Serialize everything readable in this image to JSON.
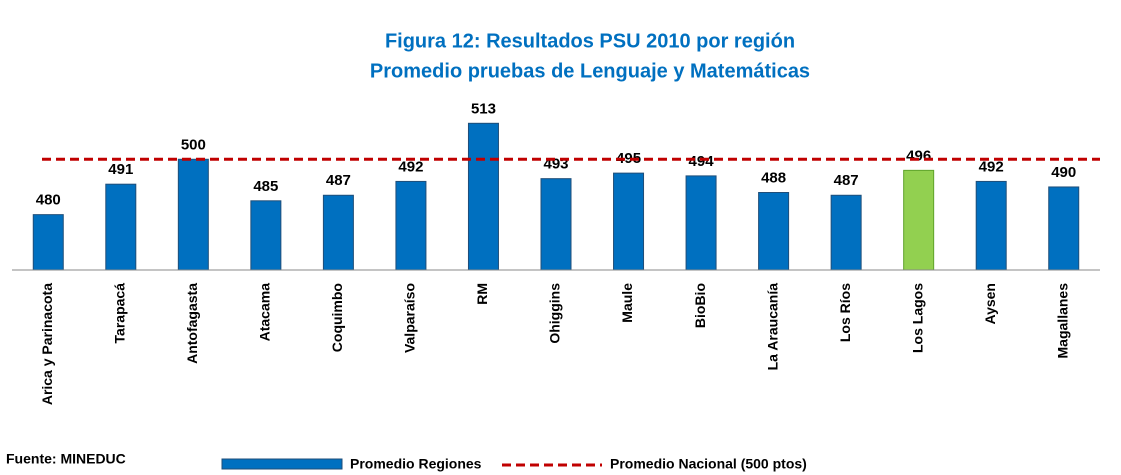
{
  "chart_data": {
    "type": "bar",
    "title": "Figura 12: Resultados PSU 2010 por región",
    "subtitle": "Promedio pruebas de Lenguaje y Matemáticas",
    "categories": [
      "Arica y Parinacota",
      "Tarapacá",
      "Antofagasta",
      "Atacama",
      "Coquimbo",
      "Valparaíso",
      "RM",
      "Ohiggins",
      "Maule",
      "BioBio",
      "La Araucanía",
      "Los Ríos",
      "Los Lagos",
      "Aysen",
      "Magallanes"
    ],
    "series": [
      {
        "name": "Promedio Regiones",
        "color": "#0070c0",
        "colors": [
          "#0070c0",
          "#0070c0",
          "#0070c0",
          "#0070c0",
          "#0070c0",
          "#0070c0",
          "#0070c0",
          "#0070c0",
          "#0070c0",
          "#0070c0",
          "#0070c0",
          "#0070c0",
          "#92d050",
          "#0070c0",
          "#0070c0"
        ],
        "values": [
          480,
          491,
          500,
          485,
          487,
          492,
          513,
          493,
          495,
          494,
          488,
          487,
          496,
          492,
          490
        ]
      }
    ],
    "reference_line": {
      "name": "Promedio Nacional (500 ptos)",
      "value": 500,
      "color": "#c00000"
    },
    "ylim": [
      460,
      516
    ],
    "source": "Fuente: MINEDUC"
  }
}
